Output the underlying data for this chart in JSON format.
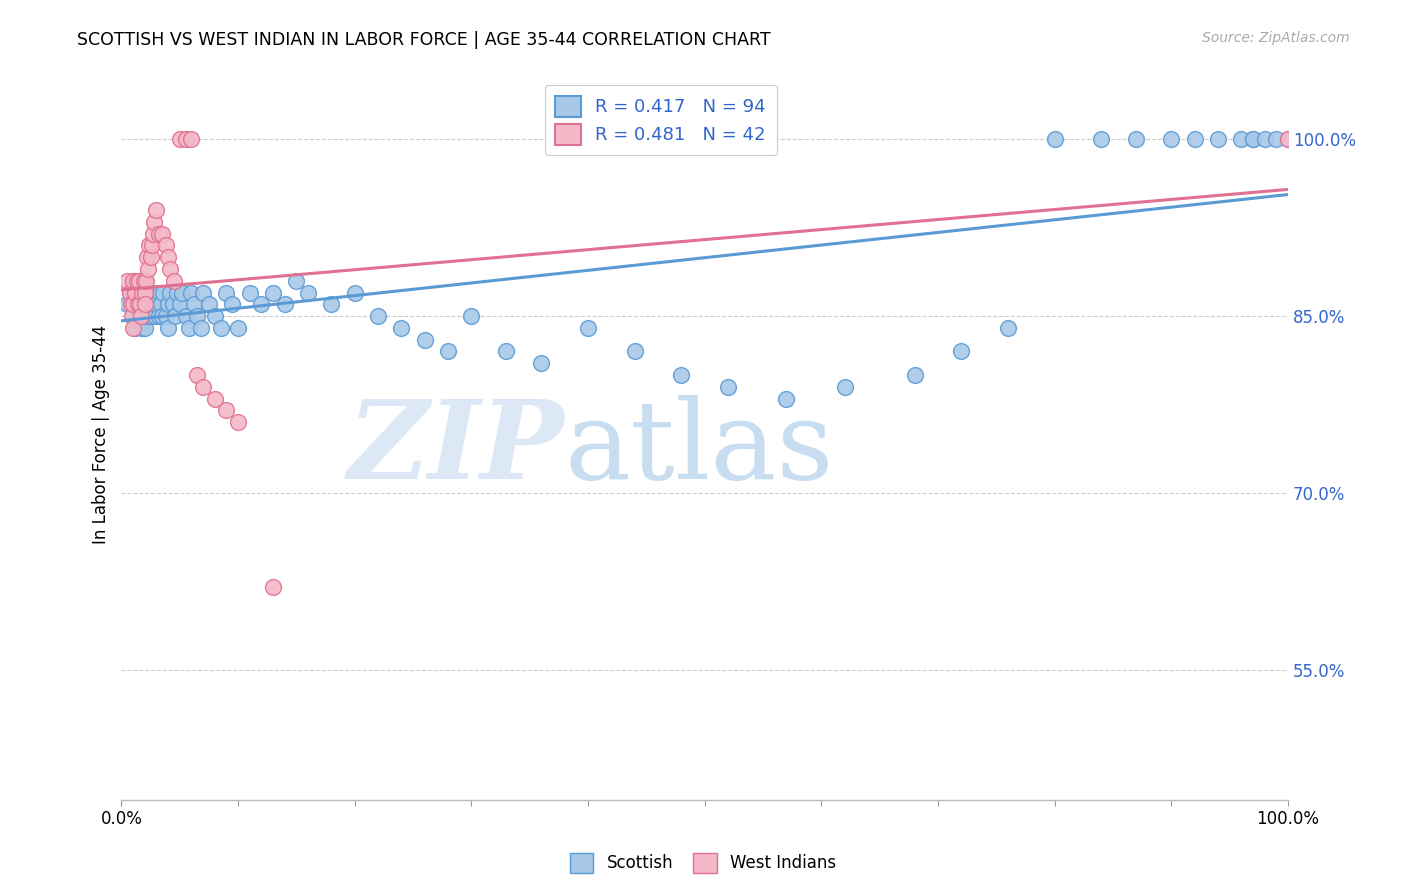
{
  "title": "SCOTTISH VS WEST INDIAN IN LABOR FORCE | AGE 35-44 CORRELATION CHART",
  "source": "Source: ZipAtlas.com",
  "ylabel": "In Labor Force | Age 35-44",
  "ytick_vals": [
    0.55,
    0.7,
    0.85,
    1.0
  ],
  "ytick_labels": [
    "55.0%",
    "70.0%",
    "85.0%",
    "100.0%"
  ],
  "xtick_vals": [
    0.0,
    0.1,
    0.2,
    0.3,
    0.4,
    0.5,
    0.6,
    0.7,
    0.8,
    0.9,
    1.0
  ],
  "xtick_labels": [
    "0.0%",
    "",
    "",
    "",
    "",
    "",
    "",
    "",
    "",
    "",
    "100.0%"
  ],
  "xlim": [
    0.0,
    1.0
  ],
  "ylim": [
    0.44,
    1.06
  ],
  "blue_face": "#a8c8e8",
  "blue_edge": "#5b9bd5",
  "pink_face": "#f4b8c8",
  "pink_edge": "#e07090",
  "blue_line": "#5b9bd5",
  "pink_line": "#e07090",
  "legend_text_color": "#3366cc",
  "grid_color": "#cccccc",
  "R_blue": 0.417,
  "N_blue": 94,
  "R_pink": 0.481,
  "N_pink": 42,
  "blue_x": [
    0.005,
    0.008,
    0.01,
    0.01,
    0.01,
    0.012,
    0.014,
    0.015,
    0.015,
    0.016,
    0.017,
    0.018,
    0.018,
    0.019,
    0.02,
    0.02,
    0.02,
    0.02,
    0.02,
    0.021,
    0.022,
    0.022,
    0.023,
    0.025,
    0.025,
    0.026,
    0.027,
    0.028,
    0.029,
    0.03,
    0.03,
    0.032,
    0.033,
    0.034,
    0.035,
    0.036,
    0.038,
    0.04,
    0.04,
    0.042,
    0.044,
    0.046,
    0.048,
    0.05,
    0.052,
    0.055,
    0.058,
    0.06,
    0.062,
    0.065,
    0.068,
    0.07,
    0.075,
    0.08,
    0.085,
    0.09,
    0.095,
    0.1,
    0.11,
    0.12,
    0.13,
    0.14,
    0.15,
    0.16,
    0.18,
    0.2,
    0.22,
    0.24,
    0.26,
    0.28,
    0.3,
    0.33,
    0.36,
    0.4,
    0.44,
    0.48,
    0.52,
    0.57,
    0.62,
    0.68,
    0.72,
    0.76,
    0.8,
    0.84,
    0.87,
    0.9,
    0.92,
    0.94,
    0.96,
    0.97,
    0.97,
    0.98,
    0.99,
    1.0
  ],
  "blue_y": [
    0.86,
    0.87,
    0.88,
    0.86,
    0.85,
    0.84,
    0.87,
    0.86,
    0.88,
    0.85,
    0.87,
    0.86,
    0.84,
    0.85,
    0.87,
    0.86,
    0.85,
    0.88,
    0.84,
    0.86,
    0.87,
    0.85,
    0.86,
    0.87,
    0.85,
    0.86,
    0.87,
    0.86,
    0.85,
    0.87,
    0.86,
    0.85,
    0.87,
    0.86,
    0.85,
    0.87,
    0.85,
    0.86,
    0.84,
    0.87,
    0.86,
    0.85,
    0.87,
    0.86,
    0.87,
    0.85,
    0.84,
    0.87,
    0.86,
    0.85,
    0.84,
    0.87,
    0.86,
    0.85,
    0.84,
    0.87,
    0.86,
    0.84,
    0.87,
    0.86,
    0.87,
    0.86,
    0.88,
    0.87,
    0.86,
    0.87,
    0.85,
    0.84,
    0.83,
    0.82,
    0.85,
    0.82,
    0.81,
    0.84,
    0.82,
    0.8,
    0.79,
    0.78,
    0.79,
    0.8,
    0.82,
    0.84,
    1.0,
    1.0,
    1.0,
    1.0,
    1.0,
    1.0,
    1.0,
    1.0,
    1.0,
    1.0,
    1.0,
    1.0
  ],
  "pink_x": [
    0.005,
    0.007,
    0.008,
    0.009,
    0.01,
    0.01,
    0.01,
    0.012,
    0.013,
    0.014,
    0.015,
    0.016,
    0.017,
    0.018,
    0.019,
    0.02,
    0.02,
    0.021,
    0.022,
    0.023,
    0.024,
    0.025,
    0.026,
    0.027,
    0.028,
    0.03,
    0.032,
    0.035,
    0.038,
    0.04,
    0.042,
    0.045,
    0.05,
    0.055,
    0.06,
    0.065,
    0.07,
    0.08,
    0.09,
    0.1,
    0.13,
    1.0
  ],
  "pink_y": [
    0.88,
    0.87,
    0.86,
    0.85,
    0.88,
    0.86,
    0.84,
    0.87,
    0.88,
    0.86,
    0.88,
    0.86,
    0.85,
    0.87,
    0.88,
    0.87,
    0.86,
    0.88,
    0.9,
    0.89,
    0.91,
    0.9,
    0.91,
    0.92,
    0.93,
    0.94,
    0.92,
    0.92,
    0.91,
    0.9,
    0.89,
    0.88,
    1.0,
    1.0,
    1.0,
    0.8,
    0.79,
    0.78,
    0.77,
    0.76,
    0.62,
    1.0
  ]
}
